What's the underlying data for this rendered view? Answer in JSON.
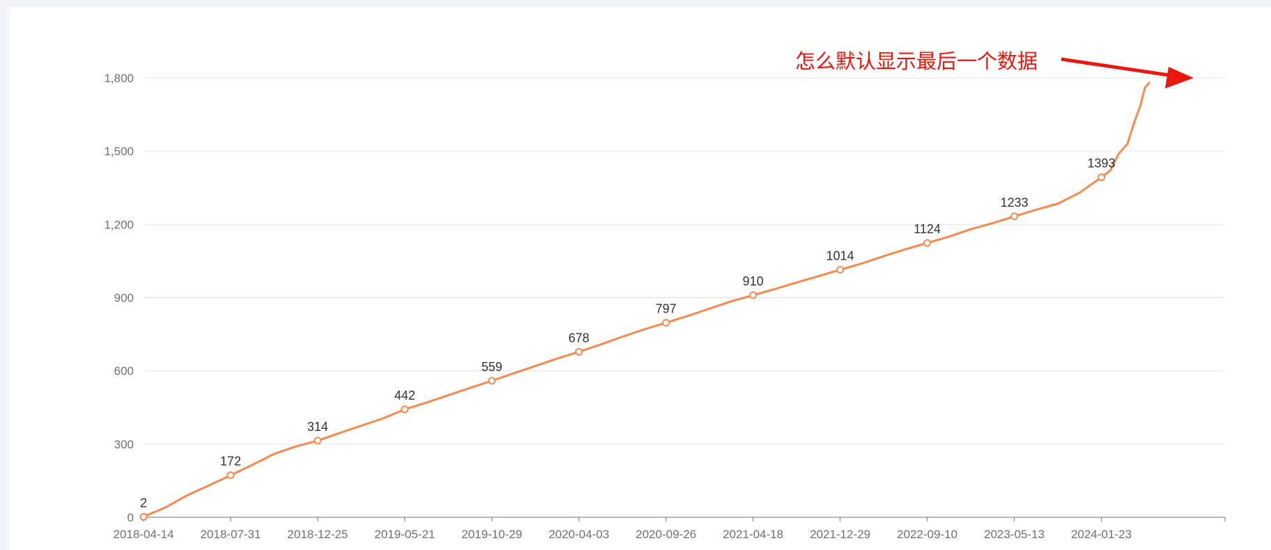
{
  "annotation": {
    "text": "怎么默认显示最后一个数据",
    "color": "#e8170f"
  },
  "chart_data": {
    "type": "line",
    "ylim": [
      0,
      1800
    ],
    "yticks": [
      0,
      300,
      600,
      900,
      1200,
      1500,
      1800
    ],
    "ytick_labels": [
      "0",
      "300",
      "600",
      "900",
      "1,200",
      "1,500",
      "1,800"
    ],
    "categories": [
      "2018-04-14",
      "2018-07-31",
      "2018-12-25",
      "2019-05-21",
      "2019-10-29",
      "2020-04-03",
      "2020-09-26",
      "2021-04-18",
      "2021-12-29",
      "2022-09-10",
      "2023-05-13",
      "2024-01-23"
    ],
    "x_end": 12.42,
    "labeled_values": [
      2,
      172,
      314,
      442,
      559,
      678,
      797,
      910,
      1014,
      1124,
      1233,
      1393
    ],
    "series": [
      {
        "color": "#f5894f",
        "points": [
          [
            0,
            2
          ],
          [
            0.25,
            40
          ],
          [
            0.5,
            90
          ],
          [
            0.75,
            130
          ],
          [
            1,
            172
          ],
          [
            1.25,
            215
          ],
          [
            1.5,
            260
          ],
          [
            1.75,
            290
          ],
          [
            2,
            314
          ],
          [
            2.25,
            345
          ],
          [
            2.5,
            375
          ],
          [
            2.75,
            405
          ],
          [
            3,
            442
          ],
          [
            3.25,
            470
          ],
          [
            3.5,
            500
          ],
          [
            3.75,
            530
          ],
          [
            4,
            559
          ],
          [
            4.25,
            590
          ],
          [
            4.5,
            620
          ],
          [
            4.75,
            650
          ],
          [
            5,
            678
          ],
          [
            5.25,
            708
          ],
          [
            5.5,
            740
          ],
          [
            5.75,
            770
          ],
          [
            6,
            797
          ],
          [
            6.25,
            825
          ],
          [
            6.5,
            855
          ],
          [
            6.75,
            885
          ],
          [
            7,
            910
          ],
          [
            7.25,
            935
          ],
          [
            7.5,
            962
          ],
          [
            7.75,
            988
          ],
          [
            8,
            1014
          ],
          [
            8.25,
            1040
          ],
          [
            8.5,
            1070
          ],
          [
            8.75,
            1098
          ],
          [
            9,
            1124
          ],
          [
            9.25,
            1150
          ],
          [
            9.5,
            1180
          ],
          [
            9.75,
            1205
          ],
          [
            10,
            1233
          ],
          [
            10.25,
            1260
          ],
          [
            10.5,
            1285
          ],
          [
            10.75,
            1330
          ],
          [
            11,
            1393
          ],
          [
            11.1,
            1420
          ],
          [
            11.2,
            1490
          ],
          [
            11.3,
            1530
          ],
          [
            11.38,
            1620
          ],
          [
            11.45,
            1690
          ],
          [
            11.5,
            1760
          ],
          [
            11.55,
            1780
          ]
        ]
      }
    ],
    "grid": "horizontal",
    "legend": "none"
  }
}
